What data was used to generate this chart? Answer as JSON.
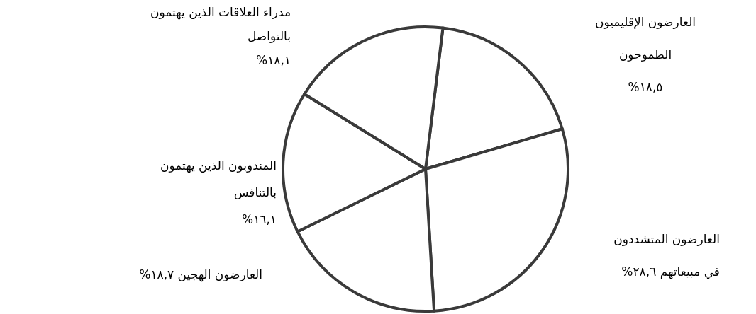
{
  "chart_data": {
    "type": "pie",
    "categories": [
      "العارضون الإقليميون الطموحون",
      "العارضون المتشددون في مبيعاتهم",
      "العارضون الهجين",
      "المندوبون الذين يهتمون بالتنافس",
      "مدراء العلاقات الذين يهتمون بالتواصل"
    ],
    "values": [
      18.5,
      28.6,
      18.7,
      16.1,
      18.1
    ],
    "value_labels": [
      "١٨,٥%",
      "٢٨,٦%",
      "١٨,٧%",
      "١٦,١%",
      "١٨,١%"
    ],
    "colors": [
      "#ffffff",
      "#ffffff",
      "#ffffff",
      "#ffffff",
      "#ffffff"
    ],
    "legend": false
  }
}
